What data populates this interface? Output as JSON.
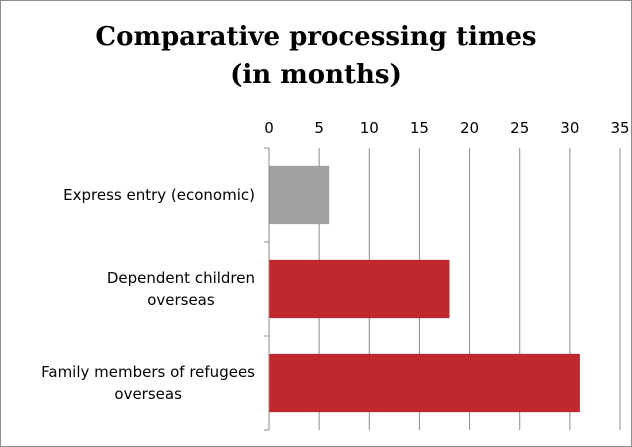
{
  "chart_data": {
    "type": "bar",
    "orientation": "horizontal",
    "title": [
      "Comparative processing times",
      "(in months)"
    ],
    "categories": [
      [
        "Express entry (economic)"
      ],
      [
        "Dependent children",
        "overseas"
      ],
      [
        "Family members of refugees",
        "overseas"
      ]
    ],
    "values": [
      6,
      18,
      31
    ],
    "bar_colors": [
      "#a0a0a0",
      "#c0282d",
      "#c0282d"
    ],
    "xlim": [
      0,
      35
    ],
    "x_ticks": [
      0,
      5,
      10,
      15,
      20,
      25,
      30,
      35
    ],
    "x_axis_position": "top",
    "grid": "vertical",
    "legend": "none"
  }
}
